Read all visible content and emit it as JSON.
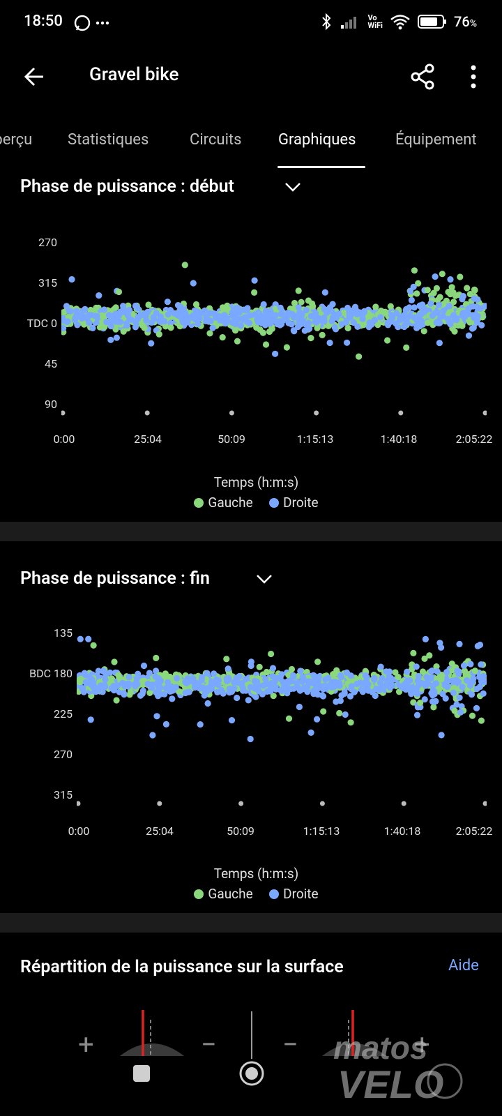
{
  "status_bar": {
    "time": "18:50",
    "battery": "76",
    "battery_unit": "%",
    "network_text": "Vo\nWiFi"
  },
  "app_bar": {
    "title": "Gravel bike"
  },
  "tabs": [
    {
      "label": "Aperçu",
      "active": false
    },
    {
      "label": "Statistiques",
      "active": false
    },
    {
      "label": "Circuits",
      "active": false
    },
    {
      "label": "Graphiques",
      "active": true
    },
    {
      "label": "Équipement",
      "active": false
    }
  ],
  "colors": {
    "left": "#8bd77c",
    "right": "#7aa7ff",
    "accent": "#7aa7ff"
  },
  "chart1": {
    "title": "Phase de puissance : début",
    "xlabel": "Temps (h:m:s)",
    "y_ticks": [
      "270",
      "315",
      "TDC 0",
      "45",
      "90"
    ],
    "x_ticks": [
      "0:00",
      "25:04",
      "50:09",
      "1:15:13",
      "1:40:18",
      "2:05:22"
    ],
    "legend": [
      "Gauche",
      "Droite"
    ]
  },
  "chart2": {
    "title": "Phase de puissance : fin",
    "xlabel": "Temps (h:m:s)",
    "y_ticks": [
      "135",
      "BDC 180",
      "225",
      "270",
      "315"
    ],
    "x_ticks": [
      "0:00",
      "25:04",
      "50:09",
      "1:15:13",
      "1:40:18",
      "2:05:22"
    ],
    "legend": [
      "Gauche",
      "Droite"
    ]
  },
  "chart_data": [
    {
      "type": "scatter",
      "title": "Phase de puissance : début",
      "xlabel": "Temps (h:m:s)",
      "ylabel": "",
      "y_tick_values": [
        -90,
        -45,
        0,
        45,
        90
      ],
      "ylim": [
        -90,
        90
      ],
      "xlim_seconds": [
        0,
        7522
      ],
      "series": [
        {
          "name": "Gauche",
          "color": "#8bd77c",
          "center": 0,
          "spread": 10
        },
        {
          "name": "Droite",
          "color": "#7aa7ff",
          "center": 0,
          "spread": 10
        }
      ]
    },
    {
      "type": "scatter",
      "title": "Phase de puissance : fin",
      "xlabel": "Temps (h:m:s)",
      "ylabel": "",
      "y_tick_values": [
        135,
        180,
        225,
        270,
        315
      ],
      "ylim": [
        135,
        315
      ],
      "xlim_seconds": [
        0,
        7522
      ],
      "series": [
        {
          "name": "Gauche",
          "color": "#8bd77c",
          "center": 196,
          "spread": 10
        },
        {
          "name": "Droite",
          "color": "#7aa7ff",
          "center": 198,
          "spread": 12
        }
      ]
    }
  ],
  "section3": {
    "title": "Répartition de la puissance sur la surface",
    "help": "Aide",
    "symbols": [
      "+",
      "−",
      "−",
      "+"
    ]
  },
  "watermark": "matos vélo"
}
